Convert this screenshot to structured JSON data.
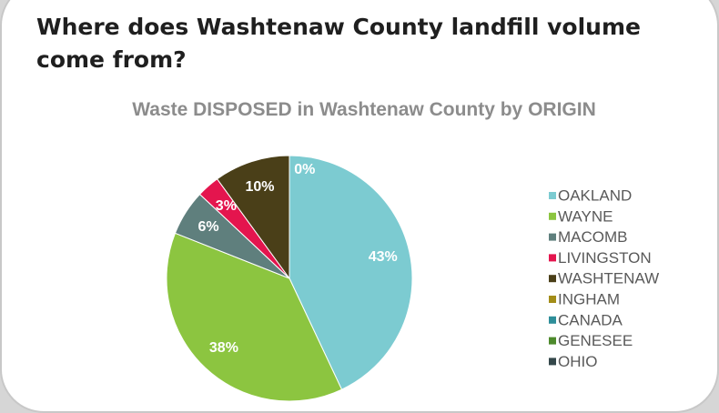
{
  "heading": "Where does Washtenaw County landfill volume come from?",
  "chart_data": {
    "type": "pie",
    "title": "Waste DISPOSED in Washtenaw County by ORIGIN",
    "categories": [
      "OAKLAND",
      "WAYNE",
      "MACOMB",
      "LIVINGSTON",
      "WASHTENAW",
      "INGHAM",
      "CANADA",
      "GENESEE",
      "OHIO"
    ],
    "values": [
      43,
      38,
      6,
      3,
      10,
      0,
      0,
      0,
      0
    ],
    "value_labels": [
      "43%",
      "38%",
      "6%",
      "3%",
      "10%",
      "0%",
      null,
      null,
      null
    ],
    "colors": [
      "#7ccbd1",
      "#8cc540",
      "#5f7f7d",
      "#e4154e",
      "#4a3f18",
      "#a38d18",
      "#2e8e99",
      "#4d8a2c",
      "#34474a"
    ],
    "legend": "right"
  }
}
